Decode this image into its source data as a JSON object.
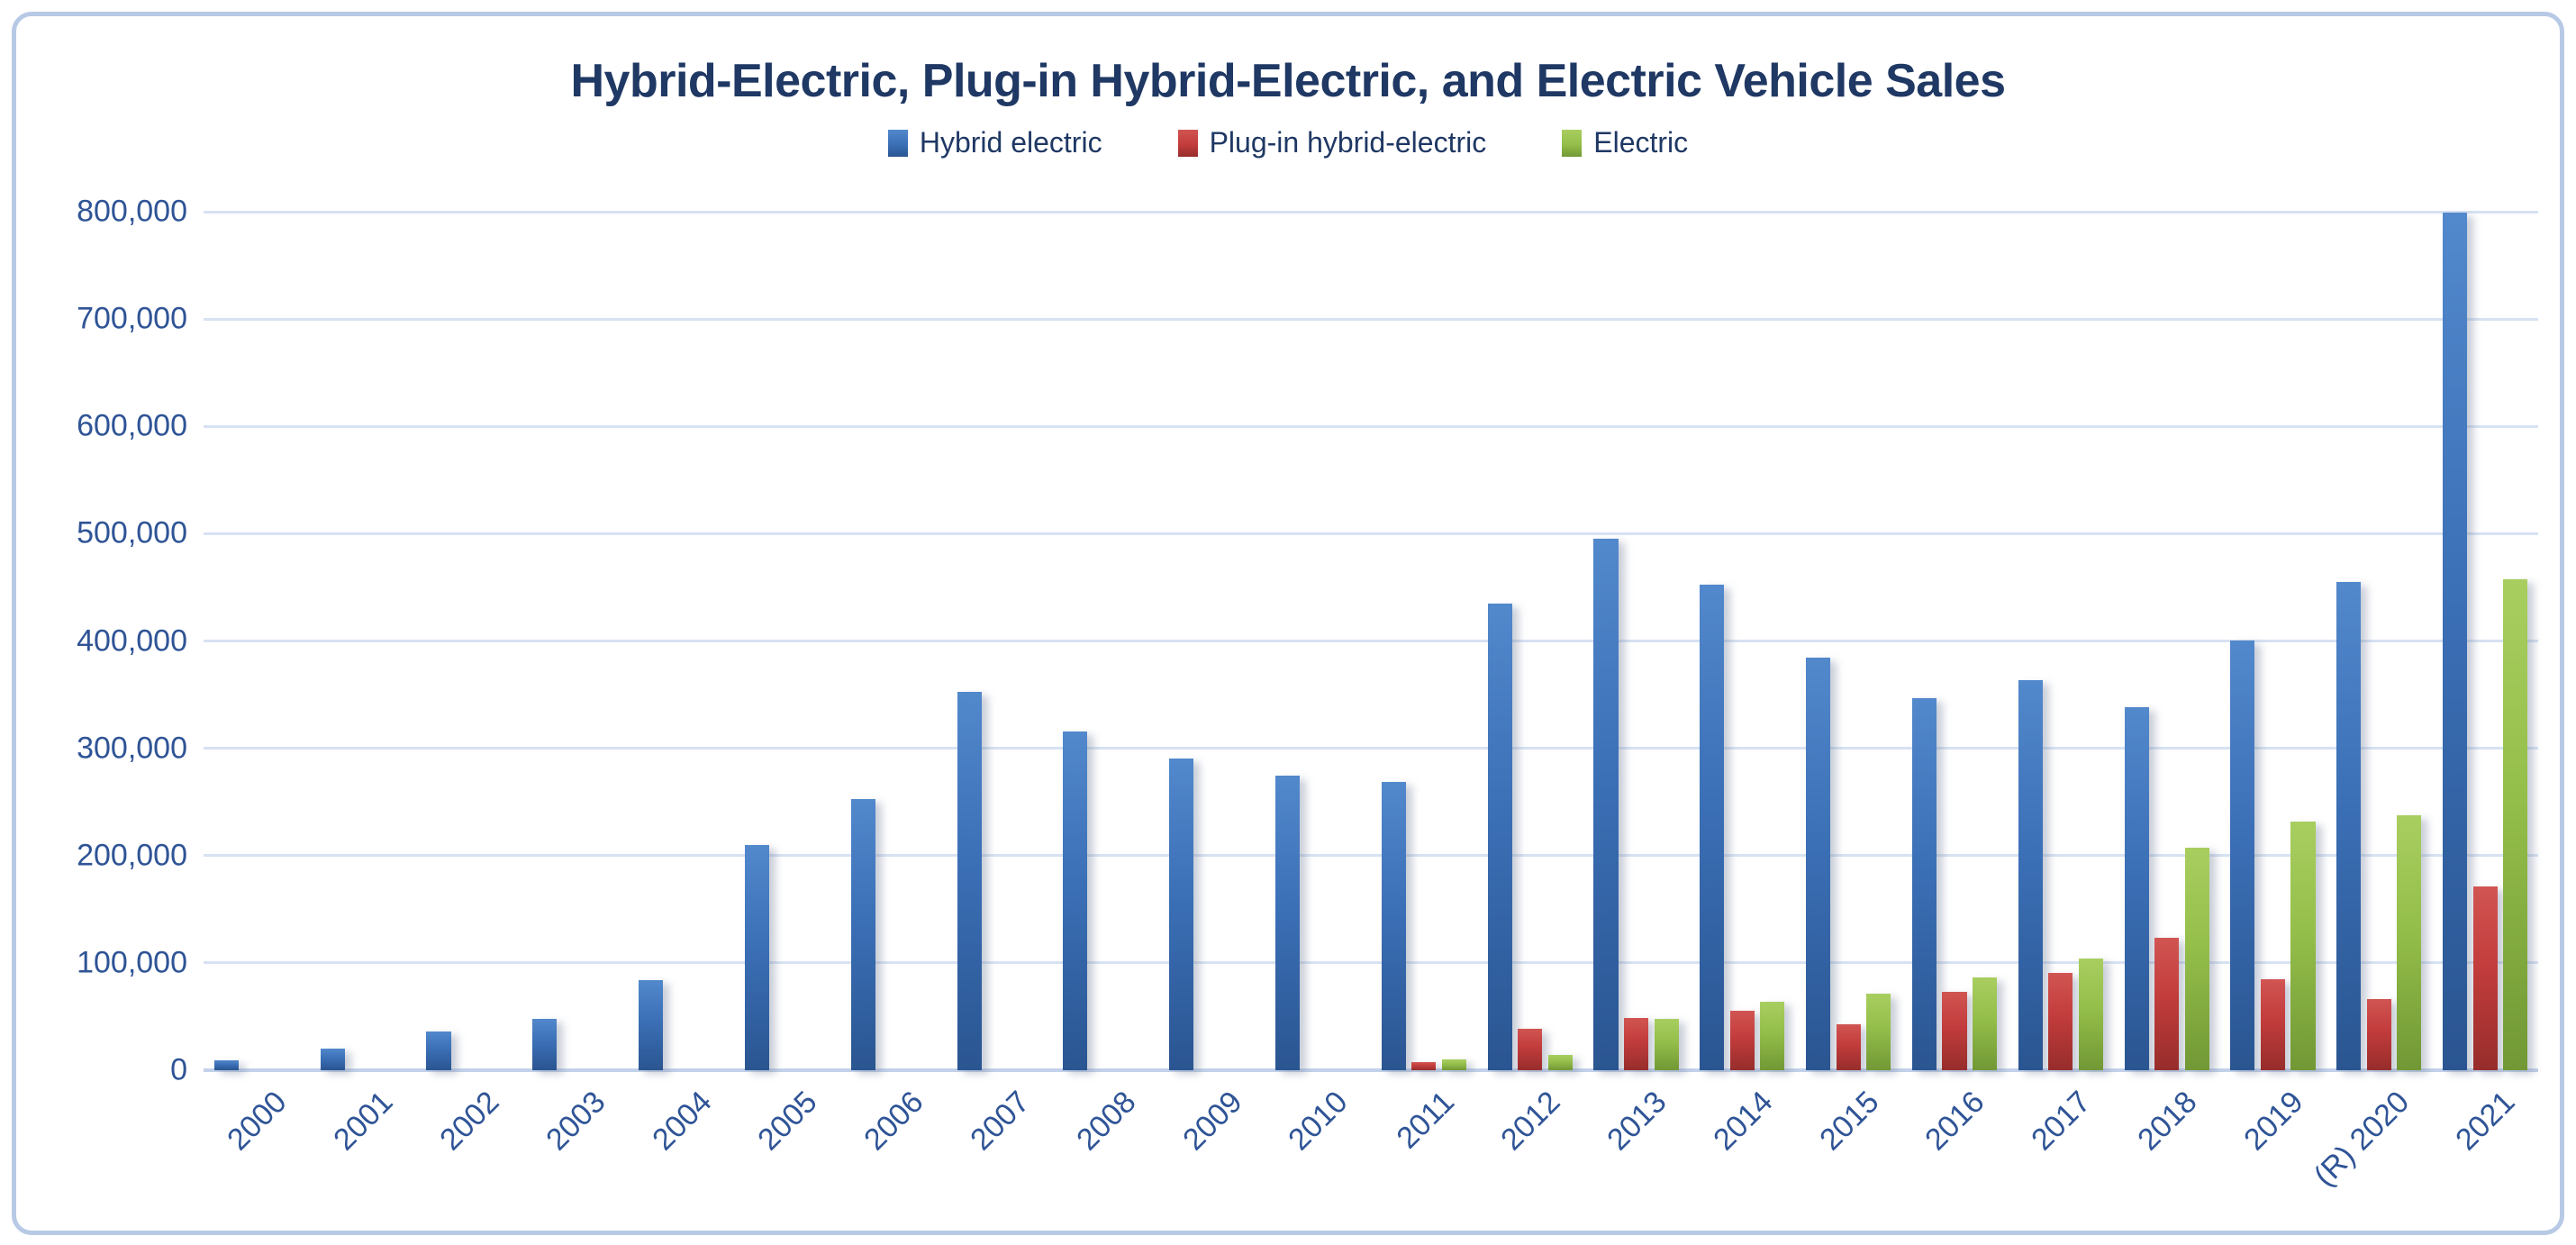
{
  "chart_data": {
    "type": "bar",
    "title": "Hybrid-Electric, Plug-in Hybrid-Electric, and Electric Vehicle Sales",
    "categories": [
      "2000",
      "2001",
      "2002",
      "2003",
      "2004",
      "2005",
      "2006",
      "2007",
      "2008",
      "2009",
      "2010",
      "2011",
      "2012",
      "2013",
      "2014",
      "2015",
      "2016",
      "2017",
      "2018",
      "2019",
      "(R) 2020",
      "2021"
    ],
    "series": [
      {
        "id": "hybrid-electric",
        "name": "Hybrid electric",
        "color": "#3b6fb6",
        "color_light": "#5288cc",
        "color_dark": "#2a5591",
        "values": [
          9350,
          20282,
          36035,
          47600,
          84199,
          209711,
          252636,
          352274,
          315688,
          290271,
          274210,
          268752,
          434498,
          495685,
          452172,
          384404,
          346948,
          363189,
          338000,
          400746,
          455313,
          799072
        ]
      },
      {
        "id": "plug-in-hybrid-electric",
        "name": "Plug-in hybrid-electric",
        "color": "#c23c3c",
        "color_light": "#d15552",
        "color_dark": "#962d2b",
        "values": [
          null,
          null,
          null,
          null,
          null,
          null,
          null,
          null,
          null,
          null,
          null,
          7671,
          38584,
          49008,
          55357,
          42959,
          72885,
          90732,
          123500,
          85000,
          66500,
          171500
        ]
      },
      {
        "id": "electric",
        "name": "Electric",
        "color": "#94be4a",
        "color_light": "#a8ce60",
        "color_dark": "#719835",
        "values": [
          null,
          null,
          null,
          null,
          null,
          null,
          null,
          null,
          null,
          null,
          null,
          10092,
          14251,
          47694,
          63416,
          71044,
          86731,
          104487,
          207000,
          232000,
          237500,
          457500
        ]
      }
    ],
    "ylim": [
      0,
      800000
    ],
    "yticks": [
      0,
      100000,
      200000,
      300000,
      400000,
      500000,
      600000,
      700000,
      800000
    ],
    "ytick_labels": [
      "0",
      "100,000",
      "200,000",
      "300,000",
      "400,000",
      "500,000",
      "600,000",
      "700,000",
      "800,000"
    ],
    "grid": "horizontal",
    "legend_position": "top-center",
    "colors": {
      "title_text": "#1f3864",
      "tick_text": "#2f5496",
      "gridline": "#d7e2f3",
      "axis_line": "#c3d2ea",
      "frame_border": "#b7c9e5",
      "background": "#ffffff"
    }
  }
}
